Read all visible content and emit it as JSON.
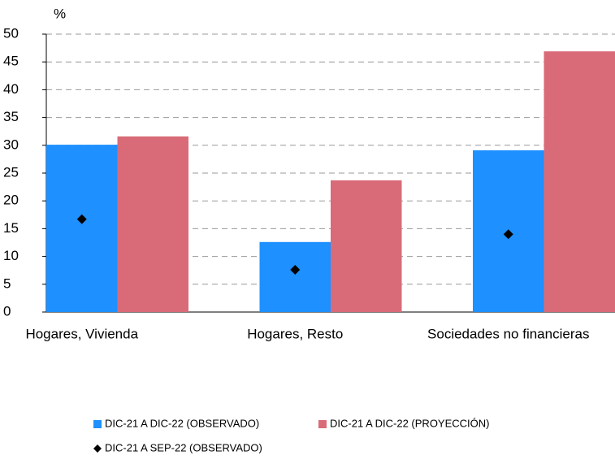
{
  "chart_data": {
    "type": "bar",
    "unit_label": "%",
    "categories": [
      "Hogares, Vivienda",
      "Hogares, Resto",
      "Sociedades no financieras"
    ],
    "series": [
      {
        "name": "DIC-21 A DIC-22 (OBSERVADO)",
        "color": "#1e90ff",
        "type": "bar",
        "values": [
          30.1,
          12.6,
          29.1
        ]
      },
      {
        "name": "DIC-21 A DIC-22 (PROYECCIÓN)",
        "color": "#d96b78",
        "type": "bar",
        "values": [
          31.6,
          23.7,
          46.9
        ]
      },
      {
        "name": "DIC-21 A SEP-22 (OBSERVADO)",
        "color": "#000000",
        "type": "marker",
        "values": [
          16.7,
          7.6,
          14.0
        ]
      }
    ],
    "ylim": [
      0,
      50
    ],
    "yticks": [
      0,
      5,
      10,
      15,
      20,
      25,
      30,
      35,
      40,
      45,
      50
    ],
    "grid": true
  }
}
